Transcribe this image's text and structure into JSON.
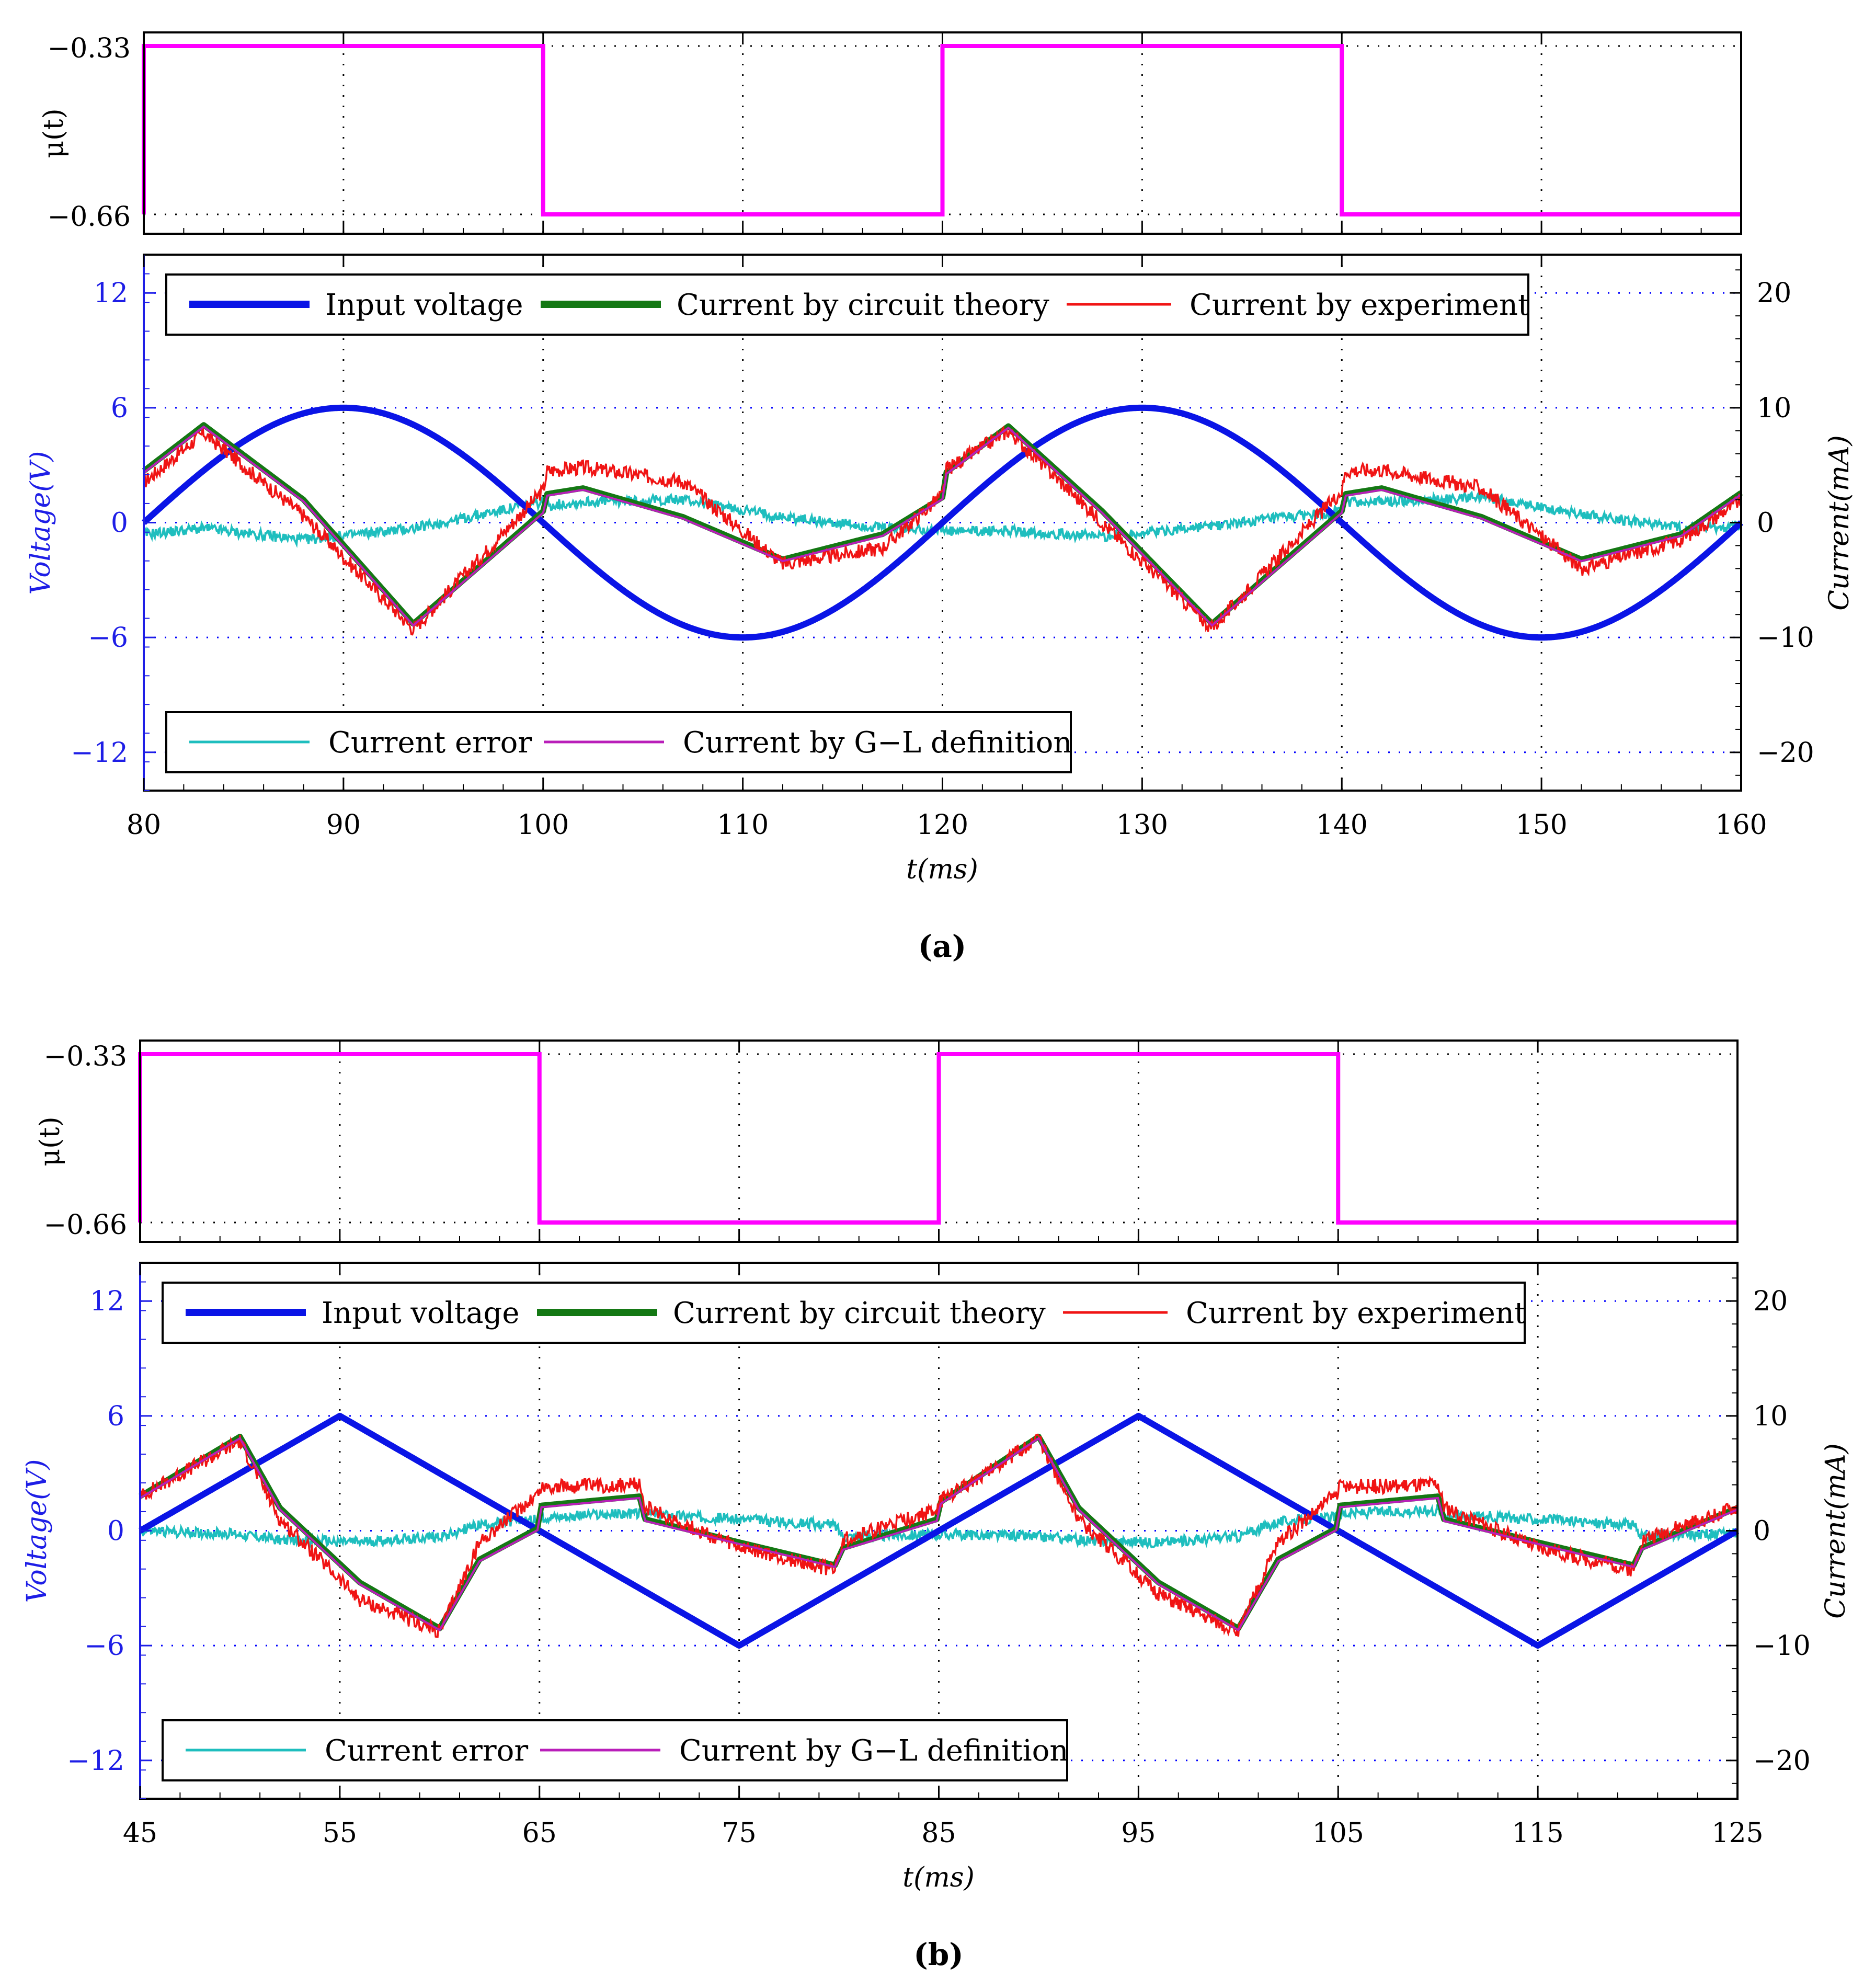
{
  "figure": {
    "captions": [
      "(a)",
      "(b)"
    ],
    "colors": {
      "input_voltage": "#0a14e6",
      "circuit_theory": "#147814",
      "experiment": "#f01414",
      "error": "#1ebebe",
      "gl_definition": "#b91eb9",
      "mu": "#ff00ff",
      "voltage_axis": "#1e1ee6"
    }
  },
  "chart_data": [
    {
      "id": "a",
      "caption": "(a)",
      "type": "line",
      "xlabel": "t(ms)",
      "xlim": [
        80,
        160
      ],
      "xticks": [
        "80",
        "90",
        "100",
        "110",
        "120",
        "130",
        "140",
        "150",
        "160"
      ],
      "mu_panel": {
        "ylabel": "μ(t)",
        "yticks": [
          "−0.33",
          "−0.66"
        ],
        "high": -0.33,
        "low": -0.66,
        "switch_times": [
          80,
          100,
          120,
          140,
          160
        ],
        "levels": [
          -0.33,
          -0.66,
          -0.33,
          -0.66
        ]
      },
      "main_panel": {
        "ylabel_left": "Voltage(V)",
        "ylim_left": [
          -14,
          14
        ],
        "yticks_left": [
          "12",
          "6",
          "0",
          "−6",
          "−12"
        ],
        "ylabel_right": "Current(mA)",
        "ylim_right": [
          -23.33,
          23.33
        ],
        "yticks_right": [
          "20",
          "10",
          "0",
          "−10",
          "−20"
        ],
        "waveform": "sine",
        "voltage_amplitude": 6,
        "period_ms": 40,
        "phase_start_ms": 80,
        "current_samples_ms": [
          80,
          83,
          88,
          93.5,
          100,
          100.2,
          102,
          107,
          112,
          117,
          120,
          120.2,
          123.3,
          128,
          133.5,
          140,
          140.2,
          142,
          147,
          152,
          157,
          160
        ],
        "current_theory_mA": [
          4.5,
          8.5,
          2.0,
          -8.8,
          1.0,
          2.5,
          3.0,
          0.5,
          -3.2,
          -1.0,
          2.2,
          4.4,
          8.4,
          1.0,
          -8.8,
          1.0,
          2.5,
          3.0,
          0.5,
          -3.2,
          -1.0,
          2.6
        ],
        "current_experiment_mA": [
          3.5,
          7.8,
          0.6,
          -9.3,
          2.8,
          4.5,
          4.8,
          3.6,
          -3.6,
          -2.2,
          2.4,
          4.6,
          8.0,
          0.0,
          -9.2,
          2.8,
          4.5,
          4.6,
          3.0,
          -4.0,
          -1.5,
          2.0
        ],
        "current_error_mA": [
          -1.0,
          -0.5,
          -1.5,
          -0.5,
          1.8,
          1.5,
          1.8,
          2.0,
          0.5,
          -0.5,
          -0.6,
          -0.8,
          -0.7,
          -1.2,
          -0.3,
          1.0,
          1.8,
          1.8,
          2.2,
          0.8,
          -0.5,
          -0.3
        ]
      },
      "legend_top": [
        "Input voltage",
        "Current by circuit theory",
        "Current by experiment"
      ],
      "legend_bottom": [
        "Current error",
        "Current by G−L definition"
      ]
    },
    {
      "id": "b",
      "caption": "(b)",
      "type": "line",
      "xlabel": "t(ms)",
      "xlim": [
        45,
        125
      ],
      "xticks": [
        "45",
        "55",
        "65",
        "75",
        "85",
        "95",
        "105",
        "115",
        "125"
      ],
      "mu_panel": {
        "ylabel": "μ(t)",
        "yticks": [
          "−0.33",
          "−0.66"
        ],
        "high": -0.33,
        "low": -0.66,
        "switch_times": [
          45,
          65,
          85,
          105,
          125
        ],
        "levels": [
          -0.33,
          -0.66,
          -0.33,
          -0.66
        ]
      },
      "main_panel": {
        "ylabel_left": "Voltage(V)",
        "ylim_left": [
          -14,
          14
        ],
        "yticks_left": [
          "12",
          "6",
          "0",
          "−6",
          "−12"
        ],
        "ylabel_right": "Current(mA)",
        "ylim_right": [
          -23.33,
          23.33
        ],
        "yticks_right": [
          "20",
          "10",
          "0",
          "−10",
          "−20"
        ],
        "waveform": "triangle",
        "voltage_amplitude": 6,
        "period_ms": 40,
        "phase_start_ms": 45,
        "current_samples_ms": [
          45,
          50,
          52,
          56,
          60,
          62,
          64.9,
          65.1,
          70,
          70.3,
          75,
          79.8,
          80.2,
          84.9,
          85.1,
          90,
          92,
          96,
          100,
          102,
          104.9,
          105.1,
          110,
          110.3,
          115,
          119.8,
          120.2,
          125
        ],
        "current_theory_mA": [
          3.0,
          8.2,
          2.0,
          -4.5,
          -8.5,
          -2.5,
          0.2,
          2.2,
          3.0,
          1.0,
          -1.0,
          -3.0,
          -1.5,
          1.0,
          2.5,
          8.2,
          2.0,
          -4.5,
          -8.5,
          -2.5,
          0.2,
          2.2,
          3.0,
          1.0,
          -1.0,
          -3.0,
          -1.5,
          2.0
        ],
        "current_experiment_mA": [
          3.0,
          7.8,
          1.0,
          -6.0,
          -8.8,
          -1.0,
          3.2,
          3.8,
          4.0,
          2.0,
          -1.5,
          -3.4,
          -0.8,
          1.8,
          2.6,
          8.0,
          1.0,
          -5.5,
          -8.8,
          -1.0,
          3.2,
          3.8,
          4.0,
          2.0,
          -1.5,
          -3.4,
          -0.8,
          2.0
        ],
        "current_error_mA": [
          0.0,
          -0.3,
          -0.8,
          -1.0,
          -0.5,
          0.5,
          1.0,
          1.2,
          1.5,
          1.5,
          1.0,
          0.5,
          -0.5,
          -0.3,
          -0.3,
          -0.5,
          -0.8,
          -1.0,
          -0.5,
          0.8,
          1.2,
          1.5,
          1.8,
          1.5,
          1.0,
          0.5,
          -0.5,
          -0.2
        ]
      },
      "legend_top": [
        "Input voltage",
        "Current by circuit theory",
        "Current by experiment"
      ],
      "legend_bottom": [
        "Current error",
        "Current by G−L definition"
      ]
    }
  ]
}
